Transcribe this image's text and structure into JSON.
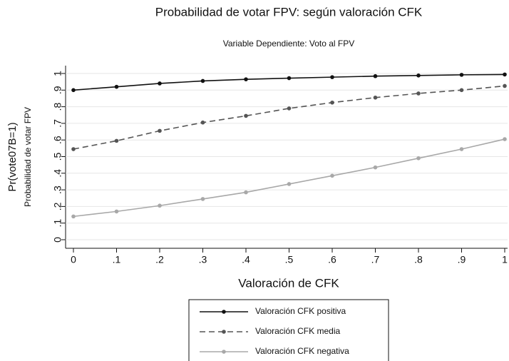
{
  "chart_data": {
    "type": "line",
    "title": "Probabilidad de votar FPV: según valoración CFK",
    "subtitle": "Variable Dependiente: Voto al FPV",
    "x_label": "Valoración de CFK",
    "y_label": "Pr(vote07B=1)",
    "y_label2": "Probabilidad de votar FPV",
    "x": [
      0,
      0.1,
      0.2,
      0.3,
      0.4,
      0.5,
      0.6,
      0.7,
      0.8,
      0.9,
      1
    ],
    "xlim": [
      0,
      1
    ],
    "ylim": [
      0,
      1
    ],
    "xticks": [
      0,
      {
        "value": 0.1,
        "label": ".1"
      },
      {
        "value": 0.2,
        "label": ".2"
      },
      {
        "value": 0.3,
        "label": ".3"
      },
      {
        "value": 0.4,
        "label": ".4"
      },
      {
        "value": 0.5,
        "label": ".5"
      },
      {
        "value": 0.6,
        "label": ".6"
      },
      {
        "value": 0.7,
        "label": ".7"
      },
      {
        "value": 0.8,
        "label": ".8"
      },
      {
        "value": 0.9,
        "label": ".9"
      },
      1
    ],
    "yticks": [
      0,
      {
        "value": 0.1,
        "label": ".1"
      },
      {
        "value": 0.2,
        "label": ".2"
      },
      {
        "value": 0.3,
        "label": ".3"
      },
      {
        "value": 0.4,
        "label": ".4"
      },
      {
        "value": 0.5,
        "label": ".5"
      },
      {
        "value": 0.6,
        "label": ".6"
      },
      {
        "value": 0.7,
        "label": ".7"
      },
      {
        "value": 0.8,
        "label": ".8"
      },
      {
        "value": 0.9,
        "label": ".9"
      },
      1
    ],
    "grid": true,
    "legend": "bottom",
    "series": [
      {
        "name": "Valoración CFK positiva",
        "color": "#111111",
        "style": "solid",
        "values": [
          0.9,
          0.92,
          0.94,
          0.955,
          0.965,
          0.972,
          0.978,
          0.984,
          0.988,
          0.992,
          0.994
        ]
      },
      {
        "name": "Valoración CFK media",
        "color": "#555555",
        "style": "dashed",
        "values": [
          0.545,
          0.595,
          0.655,
          0.705,
          0.745,
          0.79,
          0.825,
          0.855,
          0.88,
          0.9,
          0.925
        ]
      },
      {
        "name": "Valoración CFK negativa",
        "color": "#a8a8a8",
        "style": "solid",
        "values": [
          0.14,
          0.17,
          0.205,
          0.245,
          0.285,
          0.335,
          0.385,
          0.435,
          0.49,
          0.545,
          0.605
        ]
      }
    ]
  }
}
